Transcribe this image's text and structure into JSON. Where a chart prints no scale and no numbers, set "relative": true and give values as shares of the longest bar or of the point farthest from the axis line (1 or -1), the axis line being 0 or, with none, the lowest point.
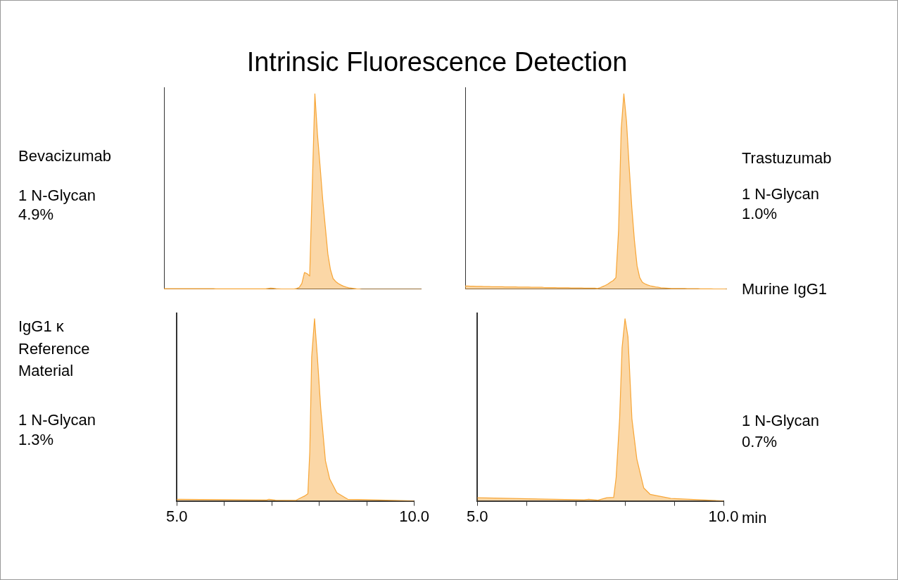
{
  "chart_data": [
    {
      "type": "area",
      "title": "Intrinsic Fluorescence Detection",
      "relative": true,
      "color": "#f7a73a",
      "marker": "none",
      "grid": false,
      "legend": false,
      "tick_labels": false,
      "annotations": [
        "Bevacizumab",
        "1 N-Glycan",
        "4.9%"
      ],
      "categories": [
        null,
        null,
        null,
        null,
        null,
        null,
        null,
        null,
        null,
        null,
        null,
        null,
        null,
        null,
        null,
        null,
        null,
        null,
        null,
        null,
        null,
        null,
        null,
        null,
        null,
        null,
        null,
        null,
        null,
        null,
        null,
        null,
        null,
        null,
        null,
        null,
        null,
        null,
        null,
        null,
        null,
        null,
        null,
        null,
        null,
        null,
        null,
        null,
        null,
        null,
        null,
        null,
        null,
        null,
        null,
        null,
        null,
        null,
        null,
        null,
        null,
        null,
        null,
        null,
        null,
        null,
        null,
        null,
        null,
        null,
        null,
        null,
        null,
        null,
        null,
        null,
        null,
        null,
        null,
        null,
        null,
        null,
        null,
        null,
        null,
        null,
        null,
        null,
        null,
        null,
        null,
        null,
        null,
        null,
        null,
        null,
        null,
        null,
        null,
        null
      ],
      "values": [
        0.003,
        0.003,
        0.003,
        0.003,
        0.003,
        0.003,
        0.003,
        0.003,
        0.003,
        0.003,
        0.003,
        0.003,
        0.003,
        0.003,
        0.003,
        0.003,
        0.003,
        0.003,
        0.003,
        0.003,
        0.002,
        0.002,
        0.002,
        0.002,
        0.002,
        0.002,
        0.002,
        0.002,
        0.002,
        0.002,
        0.002,
        0.002,
        0.002,
        0.002,
        0.002,
        0.002,
        0.002,
        0.002,
        0.002,
        0.002,
        0.004,
        0.006,
        0.005,
        0.003,
        0.002,
        0.001,
        0.001,
        0.001,
        0.001,
        0.001,
        0.001,
        0.004,
        0.01,
        0.03,
        0.086,
        0.08,
        0.068,
        0.53,
        1,
        0.79,
        0.63,
        0.46,
        0.32,
        0.18,
        0.1,
        0.055,
        0.04,
        0.03,
        0.022,
        0.016,
        0.011,
        0.008,
        0.006,
        0.004,
        0.002,
        0.001,
        0,
        0,
        0,
        0,
        0,
        0,
        0,
        0,
        0,
        0,
        0,
        0,
        0,
        0,
        0,
        0,
        0,
        0,
        0,
        0,
        0,
        0,
        0,
        0
      ]
    },
    {
      "type": "area",
      "relative": true,
      "color": "#f7a73a",
      "marker": "none",
      "grid": false,
      "legend": false,
      "tick_labels": false,
      "annotations": [
        "Trastuzumab",
        "1 N-Glycan",
        "1.0%"
      ],
      "categories": [
        null,
        null,
        null,
        null,
        null,
        null,
        null,
        null,
        null,
        null,
        null,
        null,
        null,
        null,
        null,
        null,
        null,
        null,
        null,
        null,
        null,
        null,
        null,
        null,
        null,
        null,
        null,
        null,
        null,
        null,
        null,
        null,
        null,
        null,
        null,
        null,
        null,
        null,
        null,
        null,
        null,
        null,
        null,
        null,
        null,
        null,
        null,
        null,
        null,
        null,
        null,
        null,
        null,
        null,
        null,
        null,
        null,
        null,
        null,
        null,
        null,
        null,
        null,
        null,
        null,
        null,
        null,
        null,
        null,
        null,
        null,
        null,
        null,
        null,
        null,
        null,
        null,
        null,
        null,
        null,
        null,
        null,
        null,
        null,
        null,
        null,
        null,
        null,
        null,
        null,
        null,
        null,
        null,
        null,
        null,
        null,
        null,
        null,
        null,
        null
      ],
      "values": [
        0.017,
        0.017,
        0.016,
        0.016,
        0.015,
        0.015,
        0.015,
        0.014,
        0.014,
        0.014,
        0.013,
        0.013,
        0.013,
        0.013,
        0.013,
        0.012,
        0.012,
        0.012,
        0.012,
        0.012,
        0.011,
        0.011,
        0.011,
        0.011,
        0.011,
        0.01,
        0.01,
        0.01,
        0.01,
        0.01,
        0.009,
        0.009,
        0.009,
        0.009,
        0.009,
        0.008,
        0.008,
        0.008,
        0.008,
        0.008,
        0.007,
        0.007,
        0.007,
        0.007,
        0.007,
        0.006,
        0.006,
        0.006,
        0.006,
        0.006,
        0.004,
        0.008,
        0.014,
        0.02,
        0.027,
        0.037,
        0.045,
        0.06,
        0.3,
        0.82,
        1,
        0.86,
        0.63,
        0.42,
        0.25,
        0.12,
        0.06,
        0.036,
        0.028,
        0.022,
        0.018,
        0.015,
        0.012,
        0.01,
        0.008,
        0.007,
        0.006,
        0.005,
        0.004,
        0.004,
        0.004,
        0.004,
        0.004,
        0.004,
        0.003,
        0.003,
        0.003,
        0.003,
        0.003,
        0.002,
        0.002,
        0.002,
        0.002,
        0.002,
        0.001,
        0.001,
        0.001,
        0.001,
        0.001,
        0
      ]
    },
    {
      "type": "area",
      "relative": true,
      "color": "#f7a73a",
      "marker": "none",
      "grid": false,
      "legend": false,
      "tick_labels": "x",
      "xlim": [
        5,
        10
      ],
      "xticks": [
        {
          "value": 5,
          "label": "5.0"
        },
        {
          "value": 6,
          "label": null
        },
        {
          "value": 7,
          "label": null
        },
        {
          "value": 8,
          "label": null
        },
        {
          "value": 9,
          "label": null
        },
        {
          "value": 10,
          "label": "10.0"
        }
      ],
      "annotations": [
        "IgG1 κ",
        "Reference",
        "Material",
        "1 N-Glycan",
        "1.3%"
      ],
      "x": [
        5.0,
        6.89,
        6.94,
        7.08,
        7.51,
        7.61,
        7.7,
        7.76,
        7.8,
        7.84,
        7.9,
        7.96,
        8.03,
        8.13,
        8.22,
        8.37,
        8.6,
        10.0
      ],
      "values": [
        0.009,
        0.005,
        0.009,
        0.004,
        0.003,
        0.017,
        0.028,
        0.039,
        0.27,
        0.79,
        1,
        0.79,
        0.51,
        0.22,
        0.12,
        0.045,
        0.009,
        0
      ]
    },
    {
      "type": "area",
      "relative": true,
      "color": "#f7a73a",
      "marker": "none",
      "grid": false,
      "legend": false,
      "tick_labels": "x",
      "xlabel": "min",
      "xlim": [
        5,
        10
      ],
      "xticks": [
        {
          "value": 5,
          "label": "5.0"
        },
        {
          "value": 6,
          "label": null
        },
        {
          "value": 7,
          "label": null
        },
        {
          "value": 8,
          "label": null
        },
        {
          "value": 9,
          "label": null
        },
        {
          "value": 10,
          "label": "10.0"
        }
      ],
      "annotations": [
        "Murine IgG1",
        "1 N-Glycan",
        "0.7%"
      ],
      "x": [
        5.0,
        7.17,
        7.26,
        7.45,
        7.63,
        7.77,
        7.82,
        7.89,
        7.94,
        8.0,
        8.06,
        8.14,
        8.24,
        8.38,
        8.51,
        8.93,
        10.0
      ],
      "values": [
        0.017,
        0.006,
        0.009,
        0.004,
        0.017,
        0.019,
        0.13,
        0.45,
        0.84,
        1,
        0.9,
        0.45,
        0.23,
        0.071,
        0.036,
        0.013,
        0
      ]
    }
  ]
}
